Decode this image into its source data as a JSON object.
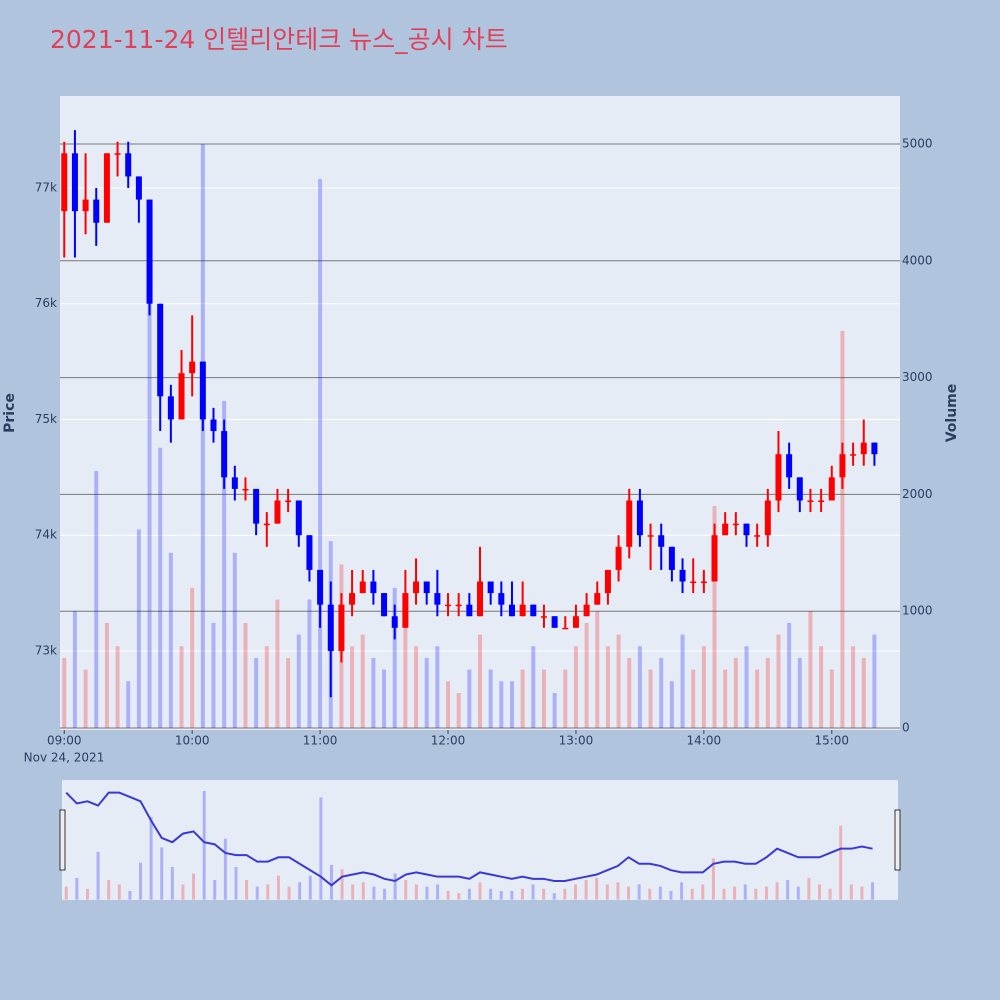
{
  "chart_data": {
    "type": "candlestick",
    "title": "2021-11-24 인텔리안테크 뉴스_공시 차트",
    "y_label": "Price",
    "y2_label": "Volume",
    "x_sublabel": "Nov 24, 2021",
    "increasing_color": "#ff0000",
    "decreasing_color": "#0000ff",
    "x": [
      "09:00",
      "09:05",
      "09:10",
      "09:15",
      "09:20",
      "09:25",
      "09:30",
      "09:35",
      "09:40",
      "09:45",
      "09:50",
      "09:55",
      "10:00",
      "10:05",
      "10:10",
      "10:15",
      "10:20",
      "10:25",
      "10:30",
      "10:35",
      "10:40",
      "10:45",
      "10:50",
      "10:55",
      "11:00",
      "11:05",
      "11:10",
      "11:15",
      "11:20",
      "11:25",
      "11:30",
      "11:35",
      "11:40",
      "11:45",
      "11:50",
      "11:55",
      "12:00",
      "12:05",
      "12:10",
      "12:15",
      "12:20",
      "12:25",
      "12:30",
      "12:35",
      "12:40",
      "12:45",
      "12:50",
      "12:55",
      "13:00",
      "13:05",
      "13:10",
      "13:15",
      "13:20",
      "13:25",
      "13:30",
      "13:35",
      "13:40",
      "13:45",
      "13:50",
      "13:55",
      "14:00",
      "14:05",
      "14:10",
      "14:15",
      "14:20",
      "14:25",
      "14:30",
      "14:35",
      "14:40",
      "14:45",
      "14:50",
      "14:55",
      "15:00",
      "15:05",
      "15:10",
      "15:15",
      "15:20"
    ],
    "open": [
      76800,
      77300,
      76800,
      76900,
      76700,
      77300,
      77300,
      77100,
      76900,
      76000,
      75200,
      75000,
      75400,
      75500,
      75000,
      74900,
      74500,
      74400,
      74400,
      74100,
      74100,
      74300,
      74300,
      74000,
      73700,
      73400,
      73000,
      73400,
      73500,
      73600,
      73500,
      73300,
      73200,
      73500,
      73600,
      73500,
      73400,
      73400,
      73400,
      73300,
      73600,
      73500,
      73400,
      73300,
      73400,
      73300,
      73300,
      73200,
      73200,
      73300,
      73400,
      73500,
      73700,
      73900,
      74300,
      74000,
      74000,
      73900,
      73700,
      73600,
      73600,
      73600,
      74000,
      74100,
      74100,
      74000,
      74000,
      74300,
      74700,
      74500,
      74300,
      74300,
      74300,
      74500,
      74700,
      74700,
      74800
    ],
    "high": [
      77400,
      77500,
      77300,
      77000,
      77300,
      77400,
      77400,
      77100,
      76900,
      76000,
      75300,
      75600,
      75900,
      75500,
      75100,
      75000,
      74600,
      74500,
      74400,
      74200,
      74400,
      74400,
      74300,
      74000,
      73700,
      73600,
      73500,
      73700,
      73700,
      73700,
      73500,
      73400,
      73700,
      73800,
      73600,
      73700,
      73500,
      73500,
      73500,
      73900,
      73600,
      73600,
      73600,
      73600,
      73400,
      73400,
      73300,
      73300,
      73400,
      73500,
      73600,
      73700,
      74000,
      74400,
      74400,
      74100,
      74100,
      73900,
      73800,
      73800,
      73700,
      74100,
      74200,
      74200,
      74100,
      74100,
      74400,
      74900,
      74800,
      74500,
      74400,
      74400,
      74600,
      74800,
      74800,
      75000,
      74800
    ],
    "low": [
      76400,
      76400,
      76600,
      76500,
      76700,
      77100,
      77000,
      76700,
      75900,
      74900,
      74800,
      75000,
      75200,
      74900,
      74800,
      74400,
      74300,
      74300,
      74000,
      73900,
      74100,
      74200,
      73900,
      73600,
      73200,
      72600,
      72900,
      73300,
      73500,
      73400,
      73300,
      73100,
      73200,
      73400,
      73400,
      73300,
      73300,
      73300,
      73300,
      73300,
      73400,
      73300,
      73300,
      73300,
      73300,
      73200,
      73200,
      73200,
      73200,
      73300,
      73400,
      73400,
      73600,
      73800,
      73900,
      73700,
      73700,
      73600,
      73500,
      73500,
      73500,
      73600,
      74000,
      74000,
      73900,
      73900,
      73900,
      74200,
      74400,
      74200,
      74200,
      74200,
      74300,
      74400,
      74600,
      74600,
      74600
    ],
    "close": [
      77300,
      76800,
      76900,
      76700,
      77300,
      77300,
      77100,
      76900,
      76000,
      75200,
      75000,
      75400,
      75500,
      75000,
      74900,
      74500,
      74400,
      74400,
      74100,
      74100,
      74300,
      74300,
      74000,
      73700,
      73400,
      73000,
      73400,
      73500,
      73600,
      73500,
      73300,
      73200,
      73500,
      73600,
      73500,
      73400,
      73400,
      73400,
      73300,
      73600,
      73500,
      73400,
      73300,
      73400,
      73300,
      73300,
      73200,
      73200,
      73300,
      73400,
      73500,
      73700,
      73900,
      74300,
      74000,
      74000,
      73900,
      73700,
      73600,
      73600,
      73600,
      74000,
      74100,
      74100,
      74000,
      74000,
      74300,
      74700,
      74500,
      74300,
      74300,
      74300,
      74500,
      74700,
      74700,
      74800,
      74700
    ],
    "volume": [
      600,
      1000,
      500,
      2200,
      900,
      700,
      400,
      1700,
      3800,
      2400,
      1500,
      700,
      1200,
      5000,
      900,
      2800,
      1500,
      900,
      600,
      700,
      1100,
      600,
      800,
      1100,
      4700,
      1600,
      1400,
      700,
      800,
      600,
      500,
      1200,
      900,
      700,
      600,
      700,
      400,
      300,
      500,
      800,
      500,
      400,
      400,
      500,
      700,
      500,
      300,
      500,
      700,
      900,
      1000,
      700,
      800,
      600,
      700,
      500,
      600,
      400,
      800,
      500,
      700,
      1900,
      500,
      600,
      700,
      500,
      600,
      800,
      900,
      600,
      1000,
      700,
      500,
      3400,
      700,
      600,
      800
    ],
    "xlim": [
      "08:58",
      "15:32"
    ],
    "xticks": [
      "09:00",
      "10:00",
      "11:00",
      "12:00",
      "13:00",
      "14:00",
      "15:00"
    ],
    "ylim": [
      72317,
      77795
    ],
    "yticks": [
      {
        "value": 73000,
        "label": "73k"
      },
      {
        "value": 74000,
        "label": "74k"
      },
      {
        "value": 75000,
        "label": "75k"
      },
      {
        "value": 76000,
        "label": "76k"
      },
      {
        "value": 77000,
        "label": "77k"
      }
    ],
    "y2lim": [
      -17,
      5411
    ],
    "y2ticks": [
      0,
      1000,
      2000,
      3000,
      4000,
      5000
    ]
  }
}
